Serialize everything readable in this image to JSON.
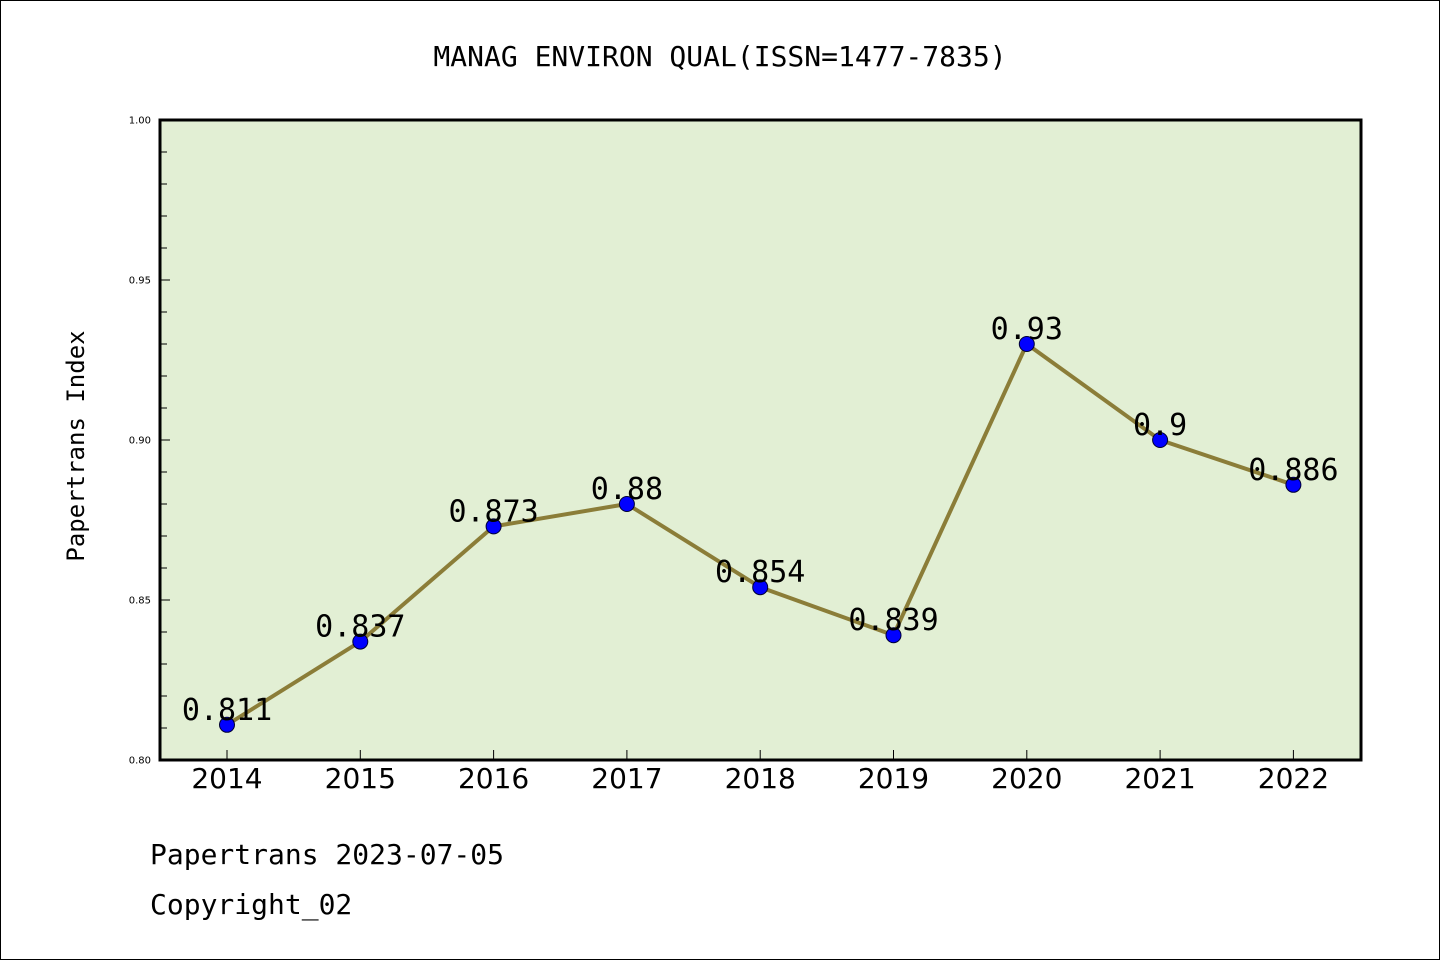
{
  "chart_data": {
    "type": "line",
    "title": "MANAG ENVIRON QUAL(ISSN=1477-7835)",
    "xlabel": "",
    "ylabel": "Papertrans Index",
    "categories": [
      "2014",
      "2015",
      "2016",
      "2017",
      "2018",
      "2019",
      "2020",
      "2021",
      "2022"
    ],
    "values": [
      0.811,
      0.837,
      0.873,
      0.88,
      0.854,
      0.839,
      0.93,
      0.9,
      0.886
    ],
    "data_labels": [
      "0.811",
      "0.837",
      "0.873",
      "0.88",
      "0.854",
      "0.839",
      "0.93",
      "0.9",
      "0.886"
    ],
    "ylim": [
      0.8,
      1.0
    ],
    "yticks": [
      0.8,
      0.85,
      0.9,
      0.95,
      1.0
    ],
    "ytick_labels": [
      "0.80",
      "0.85",
      "0.90",
      "0.95",
      "1.00"
    ],
    "grid": false,
    "colors": {
      "plot_background": "#e2efd4",
      "line": "#8b7d38",
      "marker": "#0000ff"
    }
  },
  "footer": {
    "line1": "Papertrans 2023-07-05",
    "line2": "Copyright_02"
  }
}
